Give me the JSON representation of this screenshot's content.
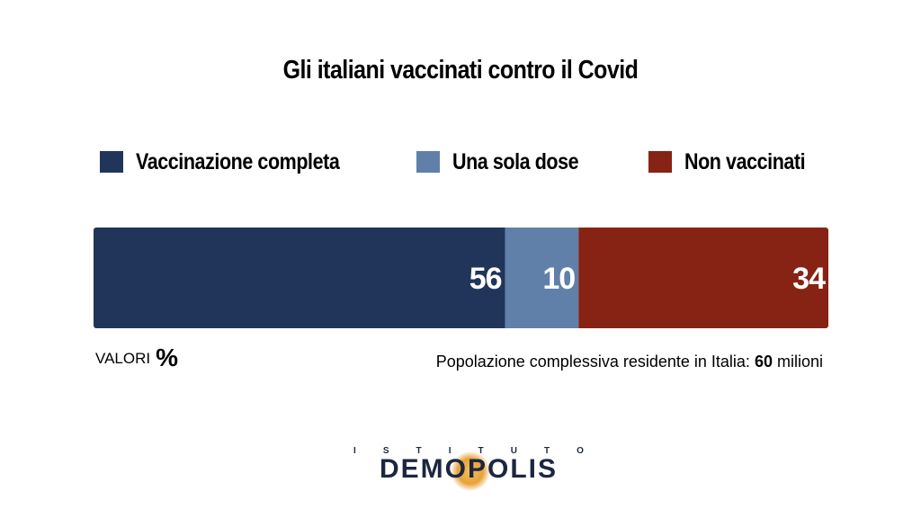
{
  "chart_data": {
    "type": "bar",
    "orientation": "horizontal-stacked",
    "title": "Gli italiani vaccinati contro il Covid",
    "categories": [
      ""
    ],
    "series": [
      {
        "name": "Vaccinazione completa",
        "values": [
          56
        ],
        "label": "56",
        "color": "#21355a"
      },
      {
        "name": "Una sola dose",
        "values": [
          10
        ],
        "label": "10",
        "color": "#6180a9"
      },
      {
        "name": "Non vaccinati",
        "values": [
          34
        ],
        "label": "34",
        "color": "#862314"
      }
    ],
    "xlim": [
      0,
      100
    ],
    "grid": false,
    "legend_position": "top"
  },
  "units": {
    "prefix": "VALORI",
    "symbol": "%"
  },
  "footnote": {
    "text": "Popolazione complessiva residente in Italia:",
    "value": "60",
    "unit": "milioni"
  },
  "logo": {
    "top": [
      "I",
      "S",
      "T",
      "I",
      "T",
      "U",
      "T",
      "O"
    ],
    "main": "DEMOPOLIS",
    "color": "#1d2640"
  }
}
